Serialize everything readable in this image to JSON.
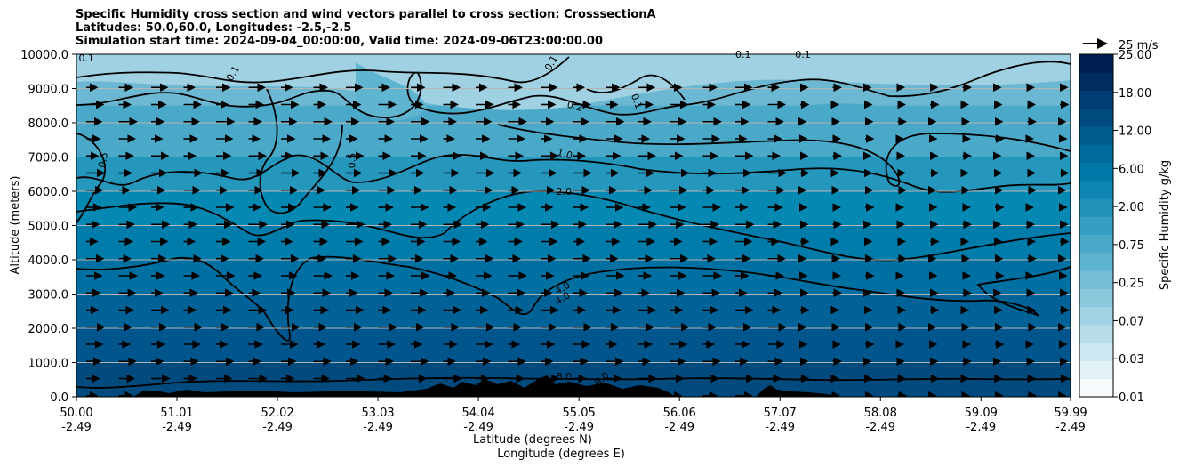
{
  "chart_data": {
    "type": "heatmap",
    "title_lines": [
      "Specific Humidity cross section and wind vectors parallel to cross section: CrosssectionA",
      "Latitudes: 50.0,60.0, Longitudes: -2.5,-2.5",
      "Simulation start time: 2024-09-04_00:00:00, Valid time: 2024-09-06T23:00:00.00"
    ],
    "ylabel": "Altitude (meters)",
    "xlabel_lat": "Latitude (degrees N)",
    "xlabel_lon": "Longitude (degrees E)",
    "ylim": [
      0,
      10000
    ],
    "xlim": [
      50.0,
      59.99
    ],
    "y_ticks": [
      "0.0",
      "1000.0",
      "2000.0",
      "3000.0",
      "4000.0",
      "5000.0",
      "6000.0",
      "7000.0",
      "8000.0",
      "9000.0",
      "10000.0"
    ],
    "y_tick_values": [
      0,
      1000,
      2000,
      3000,
      4000,
      5000,
      6000,
      7000,
      8000,
      9000,
      10000
    ],
    "x_tick_lat": [
      "50.00",
      "51.01",
      "52.02",
      "53.03",
      "54.04",
      "55.05",
      "56.06",
      "57.07",
      "58.08",
      "59.09",
      "59.99"
    ],
    "x_tick_lon": [
      "-2.49",
      "-2.49",
      "-2.49",
      "-2.49",
      "-2.49",
      "-2.49",
      "-2.49",
      "-2.49",
      "-2.49",
      "-2.49",
      "-2.49"
    ],
    "x_tick_values": [
      50.0,
      51.01,
      52.02,
      53.03,
      54.04,
      55.05,
      56.06,
      57.07,
      58.08,
      59.09,
      59.99
    ],
    "colorbar": {
      "label": "Specific Humidity g/kg",
      "tick_labels": [
        "0.01",
        "0.03",
        "0.07",
        "0.25",
        "0.75",
        "2.00",
        "6.00",
        "12.00",
        "18.00",
        "25.00"
      ],
      "levels": [
        0.01,
        0.02,
        0.03,
        0.05,
        0.07,
        0.1,
        0.25,
        0.5,
        0.75,
        1.0,
        2.0,
        4.0,
        6.0,
        8.0,
        12.0,
        15.0,
        18.0,
        21.0,
        25.0
      ],
      "colors": [
        "#f7fbfd",
        "#e2f1f6",
        "#cce7f0",
        "#b6dde9",
        "#a0d3e3",
        "#8ac9dc",
        "#74bfd6",
        "#5fb4cf",
        "#4aa9c8",
        "#359ec1",
        "#2292bb",
        "#0f86b3",
        "#0079a9",
        "#006a9d",
        "#005b8f",
        "#004c81",
        "#003d72",
        "#002e62",
        "#001f52"
      ]
    },
    "quiver_key": "25 m/s",
    "wind_rows_altitude_m": [
      9500,
      9000,
      8500,
      8000,
      7500,
      7000,
      6500,
      6000,
      5500,
      5000,
      4500,
      4000,
      3500,
      3000,
      2500,
      2000,
      1500,
      1000,
      500
    ],
    "contour_labels": [
      {
        "text": "0.1",
        "lat": 50.1,
        "alt": 9900
      },
      {
        "text": "0.1",
        "lat": 51.6,
        "alt": 9500,
        "angle": -60
      },
      {
        "text": "0.5",
        "lat": 50.3,
        "alt": 7000,
        "angle": -80
      },
      {
        "text": "0.5",
        "lat": 52.8,
        "alt": 7000,
        "angle": -90
      },
      {
        "text": "0.1",
        "lat": 54.8,
        "alt": 9800,
        "angle": -60
      },
      {
        "text": "0.1",
        "lat": 55.6,
        "alt": 8700,
        "angle": 70
      },
      {
        "text": "0.2",
        "lat": 55.0,
        "alt": 8500,
        "angle": 15
      },
      {
        "text": "0.1",
        "lat": 56.7,
        "alt": 10000
      },
      {
        "text": "0.1",
        "lat": 57.3,
        "alt": 10000
      },
      {
        "text": "1.0",
        "lat": 54.9,
        "alt": 7100,
        "angle": 15
      },
      {
        "text": "2.0",
        "lat": 54.9,
        "alt": 6000
      },
      {
        "text": "4.0",
        "lat": 54.9,
        "alt": 3200,
        "angle": -30
      },
      {
        "text": "4.0",
        "lat": 54.9,
        "alt": 2900,
        "angle": -30
      },
      {
        "text": "8.0",
        "lat": 54.9,
        "alt": 600
      },
      {
        "text": "6.0",
        "lat": 55.3,
        "alt": 550,
        "angle": -40
      }
    ]
  }
}
